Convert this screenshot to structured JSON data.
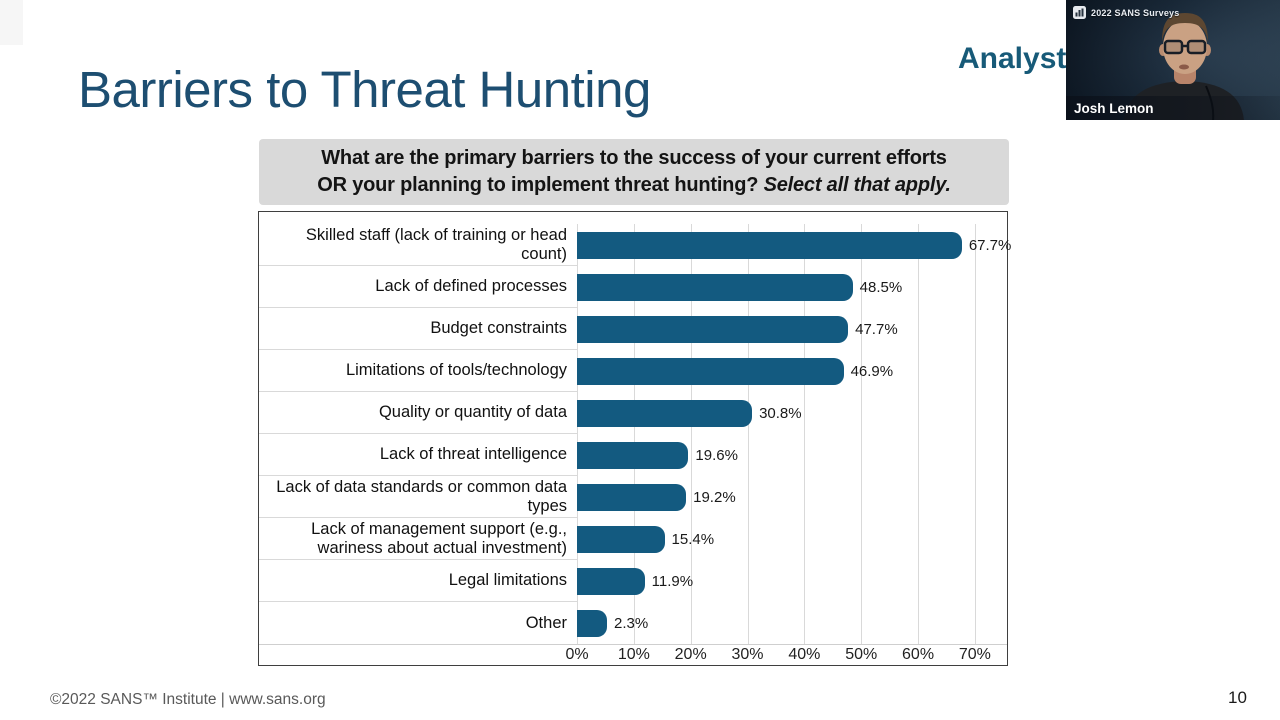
{
  "slide": {
    "title": "Barriers to Threat Hunting",
    "analyst_logo_text": "Analyst",
    "footer_text": "©2022 SANS™ Institute  |  www.sans.org",
    "page_number": "10"
  },
  "chart_data": {
    "type": "bar",
    "orientation": "horizontal",
    "title_lines": {
      "line1": "What are the primary barriers to the success of your current efforts",
      "line2": "OR your planning to implement threat hunting? ",
      "line2_italic": "Select all that apply."
    },
    "categories": [
      "Skilled staff (lack of training or head count)",
      "Lack of defined processes",
      "Budget constraints",
      "Limitations of tools/technology",
      "Quality or quantity of data",
      "Lack of threat intelligence",
      "Lack of data standards or common data types",
      "Lack of management support (e.g., wariness about actual investment)",
      "Legal limitations",
      "Other"
    ],
    "values": [
      67.7,
      48.5,
      47.7,
      46.9,
      30.8,
      19.6,
      19.2,
      15.4,
      11.9,
      2.3
    ],
    "value_labels": [
      "67.7%",
      "48.5%",
      "47.7%",
      "46.9%",
      "30.8%",
      "19.6%",
      "19.2%",
      "15.4%",
      "11.9%",
      "2.3%"
    ],
    "x_ticks": [
      "0%",
      "10%",
      "20%",
      "30%",
      "40%",
      "50%",
      "60%",
      "70%"
    ],
    "x_tick_values": [
      0,
      10,
      20,
      30,
      40,
      50,
      60,
      70
    ],
    "xlim": [
      0,
      76
    ],
    "grid": "vertical-only",
    "legend": "none",
    "bar_color": "#135a80",
    "gridline_color": "#d9d9d9"
  },
  "webcam": {
    "stream_title": "2022 SANS Surveys",
    "participant_name": "Josh Lemon"
  }
}
